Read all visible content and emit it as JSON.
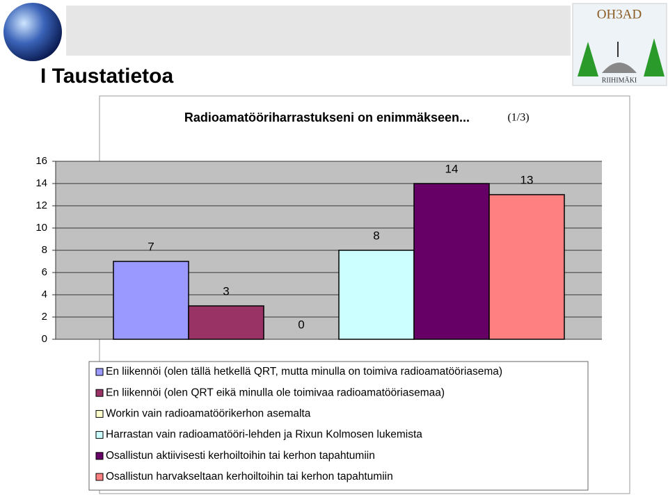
{
  "slide_title": "I Taustatietoa",
  "logo": {
    "callsign": "OH3AD",
    "town": "RIIHIMÄKI"
  },
  "chart_data": {
    "type": "bar",
    "title": "Radioamatööriharrastukseni on enimmäkseen...",
    "subtitle": "(1/3)",
    "categories": [
      "En liikennöi (olen tällä hetkellä QRT, mutta minulla on toimiva radioamatööriasema)",
      "En liikennöi (olen QRT eikä minulla ole toimivaa radioamatööriasemaa)",
      "Workin vain radioamatöörikerhon asemalta",
      "Harrastan vain radioamatööri-lehden ja Rixun Kolmosen lukemista",
      "Osallistun aktiivisesti kerhoiltoihin tai kerhon tapahtumiin",
      "Osallistun harvakseltaan kerhoiltoihin tai kerhon tapahtumiin"
    ],
    "values": [
      7,
      3,
      0,
      8,
      14,
      13
    ],
    "colors": [
      "#9999ff",
      "#993366",
      "#ffffcc",
      "#ccffff",
      "#660066",
      "#ff8080"
    ],
    "ylim": [
      0,
      16
    ],
    "yticks": [
      0,
      2,
      4,
      6,
      8,
      10,
      12,
      14,
      16
    ],
    "grid": true,
    "legend": "bottom"
  }
}
